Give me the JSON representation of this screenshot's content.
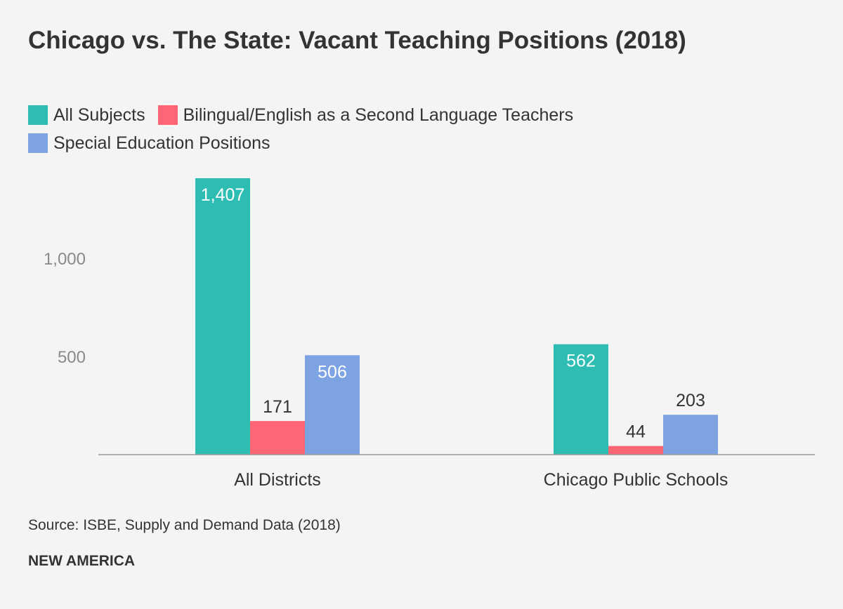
{
  "page": {
    "title": "Chicago vs. The State: Vacant Teaching Positions (2018)",
    "source": "Source: ISBE, Supply and Demand Data (2018)",
    "brand": "NEW AMERICA"
  },
  "chart_data": {
    "type": "bar",
    "title": "Chicago vs. The State: Vacant Teaching Positions (2018)",
    "xlabel": "",
    "ylabel": "",
    "categories": [
      "All Districts",
      "Chicago Public Schools"
    ],
    "series": [
      {
        "name": "All Subjects",
        "values": [
          1407,
          562
        ],
        "color": "#2ebdb3",
        "label_inside": true
      },
      {
        "name": "Bilingual/English as a Second Language Teachers",
        "values": [
          171,
          44
        ],
        "color": "#ff6675",
        "label_inside": false
      },
      {
        "name": "Special Education Positions",
        "values": [
          506,
          203
        ],
        "color": "#7ea3e3",
        "label_inside_threshold": 400
      }
    ],
    "data_labels": [
      [
        "1,407",
        "562"
      ],
      [
        "171",
        "44"
      ],
      [
        "506",
        "203"
      ]
    ],
    "y_ticks": [
      {
        "value": 500,
        "label": "500"
      },
      {
        "value": 1000,
        "label": "1,000"
      }
    ],
    "ylim": [
      0,
      1407
    ],
    "grid": false,
    "legend_position": "top-left"
  }
}
